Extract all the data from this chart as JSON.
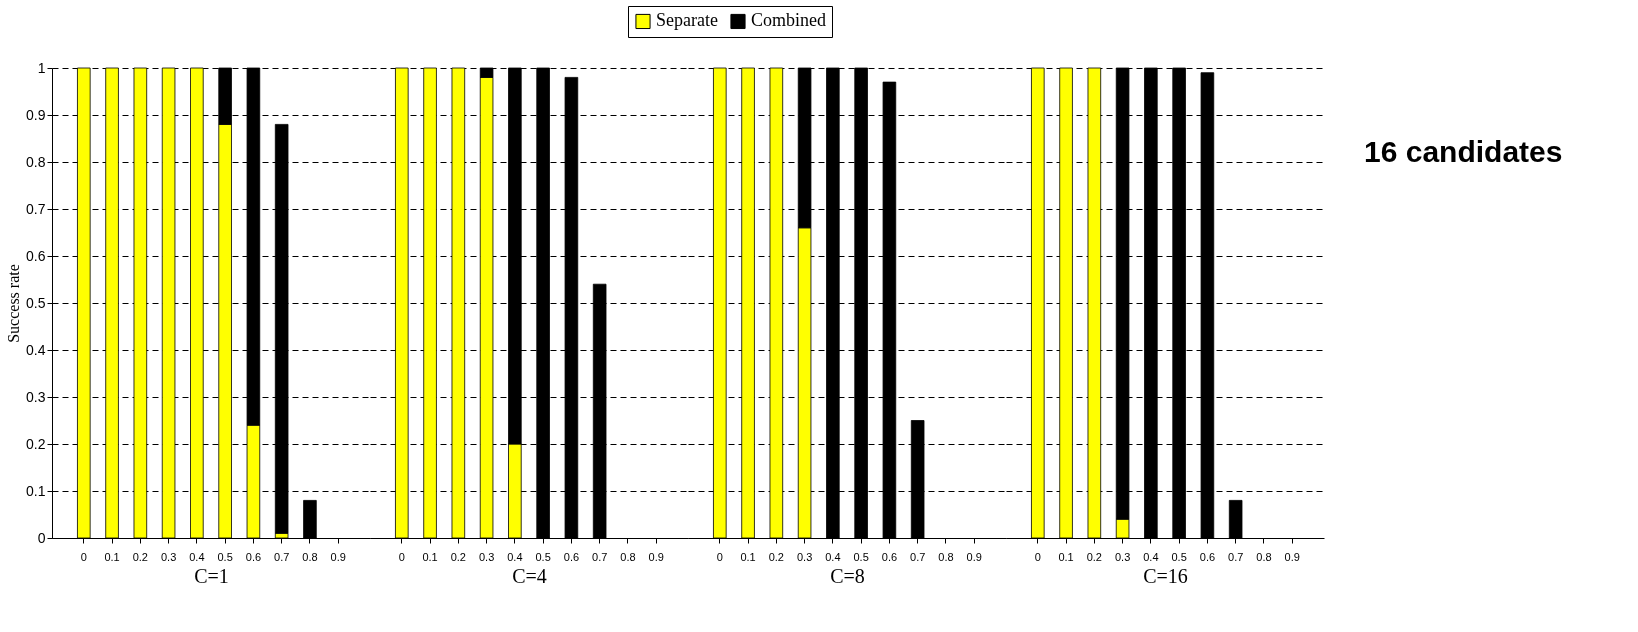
{
  "chart_data": [
    {
      "type": "bar",
      "stacked": true,
      "xlabel": "C=1",
      "ylabel": "Success rate",
      "categories": [
        "0",
        "0.1",
        "0.2",
        "0.3",
        "0.4",
        "0.5",
        "0.6",
        "0.7",
        "0.8",
        "0.9"
      ],
      "ylim": [
        0,
        1
      ],
      "yticks": [
        0,
        0.1,
        0.2,
        0.3,
        0.4,
        0.5,
        0.6,
        0.7,
        0.8,
        0.9,
        1
      ],
      "grid": "y",
      "legend": "top",
      "series": [
        {
          "name": "Separate",
          "color": "#ffff00",
          "values": [
            1,
            1,
            1,
            1,
            1,
            0.88,
            0.24,
            0.01,
            0,
            0
          ]
        },
        {
          "name": "Combined",
          "color": "#000000",
          "values": [
            0,
            0,
            0,
            0,
            0,
            0.12,
            0.76,
            0.87,
            0.08,
            0
          ]
        }
      ]
    },
    {
      "type": "bar",
      "stacked": true,
      "xlabel": "C=4",
      "categories": [
        "0",
        "0.1",
        "0.2",
        "0.3",
        "0.4",
        "0.5",
        "0.6",
        "0.7",
        "0.8",
        "0.9"
      ],
      "ylim": [
        0,
        1
      ],
      "yticks": [
        0,
        0.1,
        0.2,
        0.3,
        0.4,
        0.5,
        0.6,
        0.7,
        0.8,
        0.9,
        1
      ],
      "grid": "y",
      "tick_labels": "x",
      "legend": "top",
      "series": [
        {
          "name": "Separate",
          "color": "#ffff00",
          "values": [
            1,
            1,
            1,
            0.98,
            0.2,
            0,
            0,
            0,
            0,
            0
          ]
        },
        {
          "name": "Combined",
          "color": "#000000",
          "values": [
            0,
            0,
            0,
            0.02,
            0.8,
            1,
            0.98,
            0.54,
            0,
            0
          ]
        }
      ]
    },
    {
      "type": "bar",
      "stacked": true,
      "xlabel": "C=8",
      "categories": [
        "0",
        "0.1",
        "0.2",
        "0.3",
        "0.4",
        "0.5",
        "0.6",
        "0.7",
        "0.8",
        "0.9"
      ],
      "ylim": [
        0,
        1
      ],
      "yticks": [
        0,
        0.1,
        0.2,
        0.3,
        0.4,
        0.5,
        0.6,
        0.7,
        0.8,
        0.9,
        1
      ],
      "grid": "y",
      "tick_labels": "x",
      "legend": "top",
      "series": [
        {
          "name": "Separate",
          "color": "#ffff00",
          "values": [
            1,
            1,
            1,
            0.66,
            0,
            0,
            0,
            0,
            0,
            0
          ]
        },
        {
          "name": "Combined",
          "color": "#000000",
          "values": [
            0,
            0,
            0,
            0.34,
            1,
            1,
            0.97,
            0.25,
            0,
            0
          ]
        }
      ]
    },
    {
      "type": "bar",
      "stacked": true,
      "xlabel": "C=16",
      "categories": [
        "0",
        "0.1",
        "0.2",
        "0.3",
        "0.4",
        "0.5",
        "0.6",
        "0.7",
        "0.8",
        "0.9"
      ],
      "ylim": [
        0,
        1
      ],
      "yticks": [
        0,
        0.1,
        0.2,
        0.3,
        0.4,
        0.5,
        0.6,
        0.7,
        0.8,
        0.9,
        1
      ],
      "grid": "y",
      "tick_labels": "x",
      "legend": "top",
      "annotations": [
        "16 candidates"
      ],
      "series": [
        {
          "name": "Separate",
          "color": "#ffff00",
          "values": [
            1,
            1,
            1,
            0.04,
            0,
            0,
            0,
            0,
            0,
            0
          ]
        },
        {
          "name": "Combined",
          "color": "#000000",
          "values": [
            0,
            0,
            0,
            0.96,
            1,
            1,
            0.99,
            0.08,
            0,
            0
          ]
        }
      ]
    }
  ]
}
